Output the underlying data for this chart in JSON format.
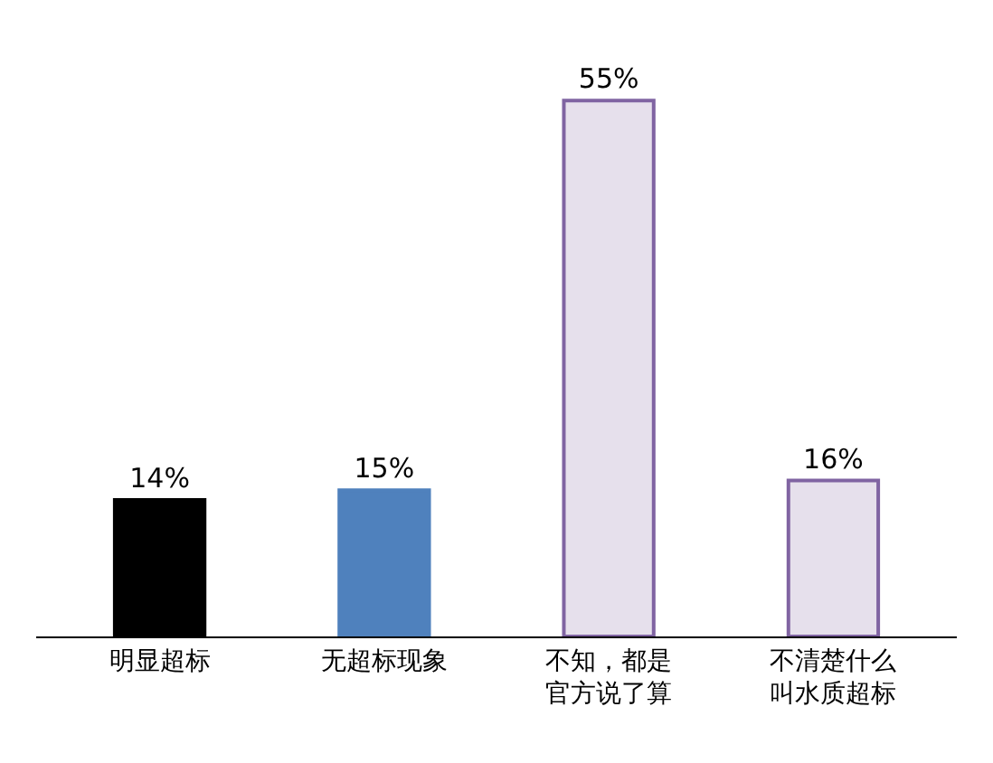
{
  "chart_data": {
    "type": "bar",
    "categories": [
      "明显超标",
      "无超标现象",
      "不知，都是官方说了算",
      "不清楚什么叫水质超标"
    ],
    "values": [
      14,
      15,
      55,
      16
    ],
    "colors": [
      "#000000",
      "#4f81bd",
      "#e6e0ec",
      "#e6e0ec"
    ],
    "value_labels": [
      "14%",
      "15%",
      "55%",
      "16%"
    ]
  }
}
